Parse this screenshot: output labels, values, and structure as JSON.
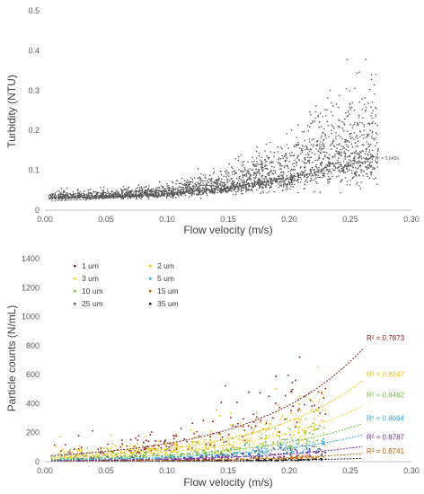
{
  "chart_data": [
    {
      "type": "scatter",
      "xlabel": "Flow velocity (m/s)",
      "ylabel": "Turbidity (NTU)",
      "xlim": [
        0,
        0.3
      ],
      "ylim": [
        0,
        0.5
      ],
      "xticks": [
        "0.00",
        "0.05",
        "0.10",
        "0.15",
        "0.20",
        "0.25",
        "0.30"
      ],
      "yticks": [
        "0",
        "0.1",
        "0.2",
        "0.3",
        "0.4",
        "0.5"
      ],
      "grid": false,
      "point_color": "#595959",
      "trend": {
        "a": 0.0218,
        "b": 6.62,
        "x_range": [
          0.005,
          0.265
        ],
        "color": "#595959"
      },
      "r2_label": "R² = 0.6456",
      "r2_x": 0.266,
      "r2_y": 0.131,
      "density": [
        {
          "x": 0.0,
          "y": 0.032,
          "spread": 0.006
        },
        {
          "x": 0.05,
          "y": 0.035,
          "spread": 0.008
        },
        {
          "x": 0.1,
          "y": 0.041,
          "spread": 0.012
        },
        {
          "x": 0.15,
          "y": 0.058,
          "spread": 0.022
        },
        {
          "x": 0.2,
          "y": 0.085,
          "spread": 0.045
        },
        {
          "x": 0.23,
          "y": 0.115,
          "spread": 0.075
        },
        {
          "x": 0.27,
          "y": 0.14,
          "spread": 0.09
        }
      ]
    },
    {
      "type": "scatter",
      "xlabel": "Flow velocity (m/s)",
      "ylabel": "Particle counts (N/mL)",
      "xlim": [
        0,
        0.3
      ],
      "ylim": [
        0,
        1400
      ],
      "xticks": [
        "0.00",
        "0.05",
        "0.10",
        "0.15",
        "0.20",
        "0.25",
        "0.30"
      ],
      "yticks": [
        "0",
        "200",
        "400",
        "600",
        "800",
        "1000",
        "1200",
        "1400"
      ],
      "grid": false,
      "legend": "top-left",
      "series": [
        {
          "name": "1 um",
          "color": "#8B1A1A",
          "base": 110,
          "trend_a": 40,
          "trend_b": 11.4,
          "r2": "R² = 0.7873",
          "r2_y": 855
        },
        {
          "name": "2 um",
          "color": "#F0C000",
          "base": 75,
          "trend_a": 28,
          "trend_b": 11.5,
          "r2": "R² = 0.8247",
          "r2_y": 605
        },
        {
          "name": "3 um",
          "color": "#F6D230",
          "base": 55,
          "trend_a": 22,
          "trend_b": 11.0,
          "r2": "",
          "r2_y": 0
        },
        {
          "name": "5 um",
          "color": "#32A8E0",
          "base": 30,
          "trend_a": 10,
          "trend_b": 11.2,
          "r2": "R² = 0.8694",
          "r2_y": 300
        },
        {
          "name": "10 um",
          "color": "#6DBE3E",
          "base": 42,
          "trend_a": 15,
          "trend_b": 11.0,
          "r2": "R² = 0.8462",
          "r2_y": 460
        },
        {
          "name": "15 um",
          "color": "#C06000",
          "base": 8,
          "trend_a": 2.5,
          "trend_b": 12.0,
          "r2": "R² = 0.8741",
          "r2_y": 75
        },
        {
          "name": "25 um",
          "color": "#7030A0",
          "base": 18,
          "trend_a": 6,
          "trend_b": 11.0,
          "r2": "R² = 0.8787",
          "r2_y": 170
        },
        {
          "name": "35 um",
          "color": "#1a1a1a",
          "base": 3,
          "trend_a": 1,
          "trend_b": 12.0,
          "r2": "",
          "r2_y": 0
        }
      ]
    }
  ]
}
